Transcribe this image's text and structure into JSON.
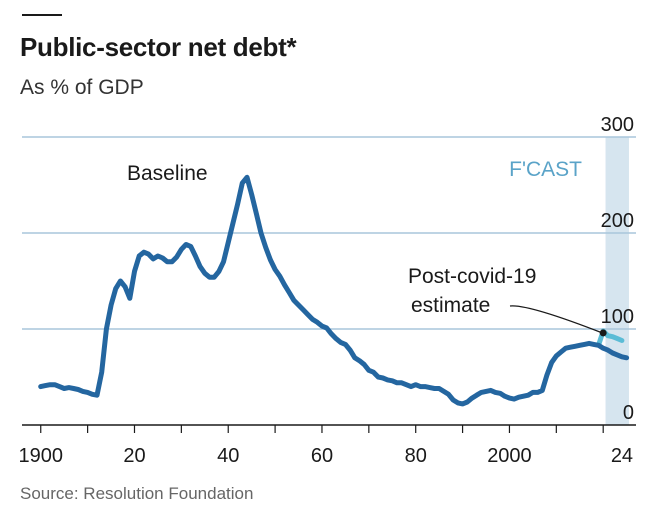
{
  "header": {
    "title": "Public-sector net debt*",
    "subtitle": "As % of GDP"
  },
  "source": "Source: Resolution Foundation",
  "colors": {
    "baseline": "#2466a0",
    "covid": "#5bbcd6",
    "forecast_band": "#d6e5ef",
    "grid": "#a9c6dc",
    "axis": "#1a1a1a"
  },
  "chart_data": {
    "type": "line",
    "title": "Public-sector net debt*",
    "subtitle": "As % of GDP",
    "xlim": [
      1896,
      2027
    ],
    "ylim": [
      0,
      300
    ],
    "x_ticks": [
      1900,
      1910,
      1920,
      1930,
      1940,
      1950,
      1960,
      1970,
      1980,
      1990,
      2000,
      2010,
      2020
    ],
    "x_tick_labels": [
      {
        "x": 1900,
        "label": "1900"
      },
      {
        "x": 1920,
        "label": "20"
      },
      {
        "x": 1940,
        "label": "40"
      },
      {
        "x": 1960,
        "label": "60"
      },
      {
        "x": 1980,
        "label": "80"
      },
      {
        "x": 2000,
        "label": "2000"
      },
      {
        "x": 2024,
        "label": "24"
      }
    ],
    "y_ticks": [
      {
        "y": 0,
        "label": "0"
      },
      {
        "y": 100,
        "label": "100"
      },
      {
        "y": 200,
        "label": "200"
      },
      {
        "y": 300,
        "label": "300"
      }
    ],
    "y_axis_side": "right",
    "grid": true,
    "forecast_band": {
      "x0": 2020.5,
      "x1": 2025.5,
      "label": "F'CAST"
    },
    "annotations": [
      {
        "text": "Baseline",
        "series": "Baseline"
      },
      {
        "text": "Post-covid-19",
        "series": "Post-covid-19 estimate"
      },
      {
        "text": "estimate",
        "series": "Post-covid-19 estimate"
      }
    ],
    "series": [
      {
        "name": "Baseline",
        "x": [
          1900,
          1901,
          1902,
          1903,
          1904,
          1905,
          1906,
          1907,
          1908,
          1909,
          1910,
          1911,
          1912,
          1913,
          1914,
          1915,
          1916,
          1917,
          1918,
          1919,
          1920,
          1921,
          1922,
          1923,
          1924,
          1925,
          1926,
          1927,
          1928,
          1929,
          1930,
          1931,
          1932,
          1933,
          1934,
          1935,
          1936,
          1937,
          1938,
          1939,
          1940,
          1941,
          1942,
          1943,
          1944,
          1945,
          1946,
          1947,
          1948,
          1949,
          1950,
          1951,
          1952,
          1953,
          1954,
          1955,
          1956,
          1957,
          1958,
          1959,
          1960,
          1961,
          1962,
          1963,
          1964,
          1965,
          1966,
          1967,
          1968,
          1969,
          1970,
          1971,
          1972,
          1973,
          1974,
          1975,
          1976,
          1977,
          1978,
          1979,
          1980,
          1981,
          1982,
          1983,
          1984,
          1985,
          1986,
          1987,
          1988,
          1989,
          1990,
          1991,
          1992,
          1993,
          1994,
          1995,
          1996,
          1997,
          1998,
          1999,
          2000,
          2001,
          2002,
          2003,
          2004,
          2005,
          2006,
          2007,
          2008,
          2009,
          2010,
          2011,
          2012,
          2013,
          2014,
          2015,
          2016,
          2017,
          2018,
          2019,
          2020,
          2021,
          2022,
          2023,
          2024,
          2025
        ],
        "y": [
          40,
          41,
          42,
          42,
          40,
          38,
          39,
          38,
          37,
          35,
          34,
          32,
          31,
          55,
          100,
          125,
          142,
          150,
          144,
          132,
          160,
          176,
          180,
          178,
          173,
          176,
          174,
          170,
          170,
          175,
          183,
          188,
          186,
          176,
          165,
          158,
          154,
          154,
          160,
          170,
          190,
          210,
          230,
          252,
          258,
          240,
          220,
          200,
          185,
          172,
          162,
          155,
          146,
          138,
          130,
          125,
          120,
          115,
          110,
          107,
          103,
          101,
          95,
          90,
          86,
          84,
          78,
          70,
          67,
          63,
          57,
          55,
          50,
          49,
          47,
          46,
          44,
          44,
          42,
          40,
          42,
          40,
          40,
          39,
          38,
          38,
          35,
          32,
          26,
          23,
          22,
          24,
          28,
          31,
          34,
          35,
          36,
          34,
          33,
          30,
          28,
          27,
          29,
          30,
          31,
          34,
          34,
          36,
          52,
          65,
          72,
          76,
          80,
          81,
          82,
          83,
          84,
          85,
          84,
          83,
          80,
          78,
          75,
          73,
          71,
          70
        ]
      },
      {
        "name": "Post-covid-19 estimate",
        "x": [
          2019,
          2020,
          2021,
          2022,
          2023,
          2024
        ],
        "y": [
          83,
          98,
          93,
          92,
          90,
          88
        ]
      }
    ]
  }
}
